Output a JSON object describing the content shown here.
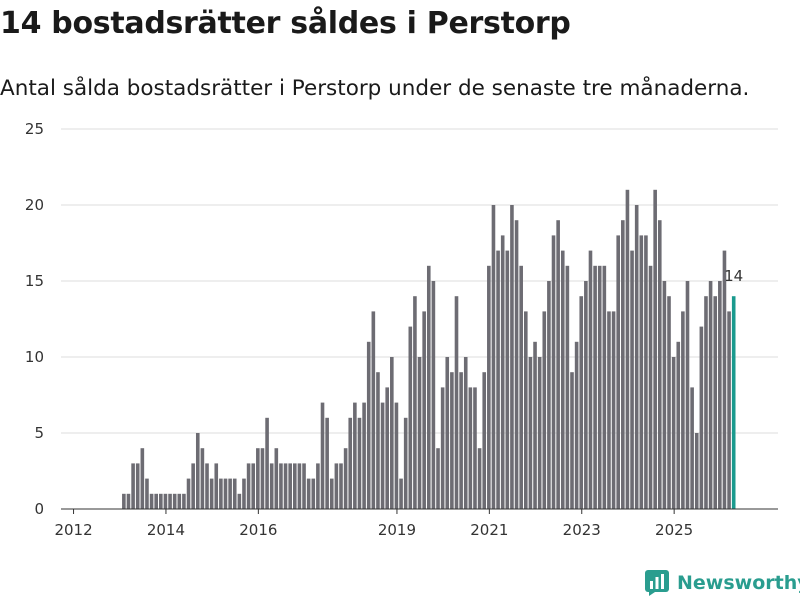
{
  "title": "14 bostadsrätter såldes i Perstorp",
  "subtitle": "Antal sålda bostadsrätter i Perstorp under de senaste tre månaderna.",
  "brand": "Newsworthy",
  "colors": {
    "bar": "#6d6c73",
    "highlight": "#1a9a8e",
    "grid": "#dddddd",
    "axis": "#333333",
    "brand": "#2a9d8f"
  },
  "chart_data": {
    "type": "bar",
    "title": "14 bostadsrätter såldes i Perstorp",
    "subtitle": "Antal sålda bostadsrätter i Perstorp under de senaste tre månaderna.",
    "xlabel": "",
    "ylabel": "",
    "ylim": [
      0,
      25
    ],
    "y_ticks": [
      0,
      5,
      10,
      15,
      20,
      25
    ],
    "x_ticks": [
      "2012",
      "2014",
      "2016",
      "2019",
      "2021",
      "2023",
      "2025"
    ],
    "x_tick_positions": [
      2.5,
      22.5,
      42.5,
      72.5,
      92.5,
      112.5,
      132.5
    ],
    "period": "rolling three-month totals, monthly, 2011-08 to 2026-01",
    "grid": true,
    "highlight_index": 145,
    "highlight_label": "14",
    "values": [
      0,
      0,
      0,
      0,
      0,
      0,
      0,
      0,
      0,
      0,
      0,
      0,
      0,
      1,
      1,
      3,
      3,
      4,
      2,
      1,
      1,
      1,
      1,
      1,
      1,
      1,
      1,
      2,
      3,
      5,
      4,
      3,
      2,
      3,
      2,
      2,
      2,
      2,
      1,
      2,
      3,
      3,
      4,
      4,
      6,
      3,
      4,
      3,
      3,
      3,
      3,
      3,
      3,
      2,
      2,
      3,
      7,
      6,
      2,
      3,
      3,
      4,
      6,
      7,
      6,
      7,
      11,
      13,
      9,
      7,
      8,
      10,
      7,
      2,
      6,
      12,
      14,
      10,
      13,
      16,
      15,
      4,
      8,
      10,
      9,
      14,
      9,
      10,
      8,
      8,
      4,
      9,
      16,
      20,
      17,
      18,
      17,
      20,
      19,
      16,
      13,
      10,
      11,
      10,
      13,
      15,
      18,
      19,
      17,
      16,
      9,
      11,
      14,
      15,
      17,
      16,
      16,
      16,
      13,
      13,
      18,
      19,
      21,
      17,
      20,
      18,
      18,
      16,
      21,
      19,
      15,
      14,
      10,
      11,
      13,
      15,
      8,
      5,
      12,
      14,
      15,
      14,
      15,
      17,
      13,
      14
    ]
  }
}
